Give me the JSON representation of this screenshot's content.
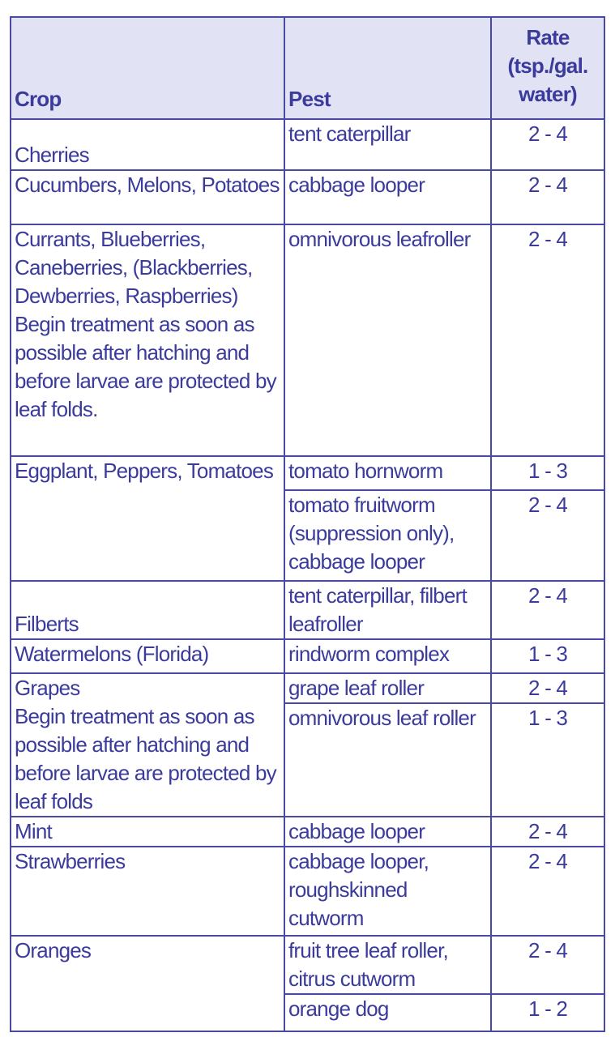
{
  "header": {
    "crop": "Crop",
    "pest": "Pest",
    "rate": "Rate (tsp./gal. water)"
  },
  "rows": [
    {
      "crop": "Cherries",
      "pests": [
        {
          "pest": "tent caterpillar",
          "rate": "2 - 4"
        }
      ]
    },
    {
      "crop": "Cucumbers, Melons, Potatoes",
      "pests": [
        {
          "pest": "cabbage looper",
          "rate": "2 - 4"
        }
      ]
    },
    {
      "crop": "Currants, Blueberries, Caneberries, (Blackberries, Dewberries, Raspberries)",
      "note": "Begin treatment as soon as possible after hatching and before larvae are protected by leaf folds.",
      "pests": [
        {
          "pest": "omnivorous leafroller",
          "rate": "2 - 4"
        }
      ]
    },
    {
      "crop": "Eggplant, Peppers, Tomatoes",
      "pests": [
        {
          "pest": "tomato hornworm",
          "rate": "1 - 3"
        },
        {
          "pest": "tomato fruitworm (suppression only), cabbage looper",
          "rate": "2 - 4"
        }
      ]
    },
    {
      "crop": "Filberts",
      "pests": [
        {
          "pest": "tent caterpillar, filbert leafroller",
          "rate": "2 - 4"
        }
      ]
    },
    {
      "crop": "Watermelons (Florida)",
      "pests": [
        {
          "pest": "rindworm complex",
          "rate": "1 - 3"
        }
      ]
    },
    {
      "crop": "Grapes",
      "note": "Begin treatment as soon as possible after hatching and before larvae are protected by leaf folds",
      "pests": [
        {
          "pest": "grape leaf roller",
          "rate": "2 - 4"
        },
        {
          "pest": "omnivorous leaf roller",
          "rate": "1 - 3"
        }
      ]
    },
    {
      "crop": "Mint",
      "pests": [
        {
          "pest": "cabbage looper",
          "rate": "2 - 4"
        }
      ]
    },
    {
      "crop": "Strawberries",
      "pests": [
        {
          "pest": "cabbage looper, roughskinned cutworm",
          "rate": "2 - 4"
        }
      ]
    },
    {
      "crop": "Oranges",
      "pests": [
        {
          "pest": "fruit tree leaf roller, citrus cutworm",
          "rate": "2 - 4"
        },
        {
          "pest": "orange dog",
          "rate": "1 - 2"
        }
      ]
    }
  ]
}
